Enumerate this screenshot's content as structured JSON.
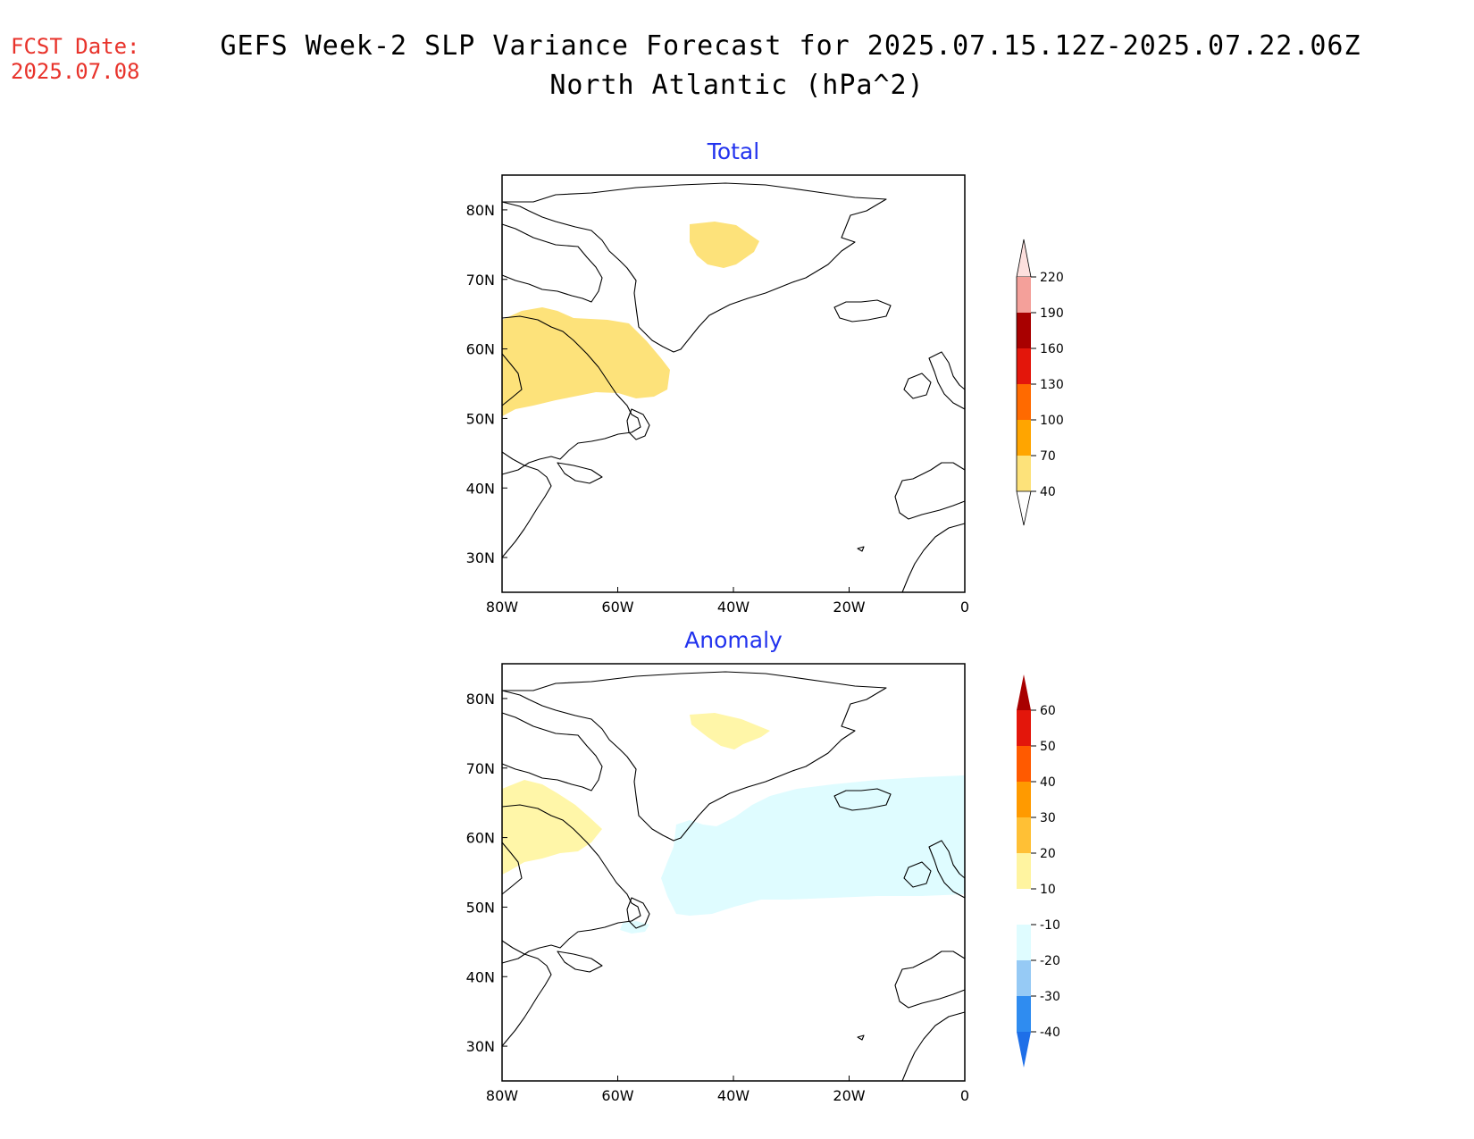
{
  "header": {
    "fcst_label": "FCST Date:",
    "fcst_date": "2025.07.08",
    "title_line1": "GEFS Week-2 SLP Variance Forecast for 2025.07.15.12Z-2025.07.22.06Z",
    "title_line2": "North Atlantic (hPa^2)"
  },
  "map": {
    "lon_range": [
      -80,
      0
    ],
    "lat_range": [
      25,
      85
    ],
    "lon_ticks": [
      "80W",
      "60W",
      "40W",
      "20W",
      "0"
    ],
    "lat_ticks": [
      "80N",
      "70N",
      "60N",
      "50N",
      "40N",
      "30N"
    ]
  },
  "panels": [
    {
      "title": "Total",
      "colorbar": {
        "levels": [
          "40",
          "70",
          "100",
          "130",
          "160",
          "190",
          "220"
        ],
        "colors": [
          "#fde27a",
          "#ffa500",
          "#ff6a00",
          "#e3160b",
          "#a80000",
          "#f4a09a",
          "#fde0de"
        ],
        "below_color": "#ffffff"
      },
      "shaded_regions": [
        {
          "name": "greenland-interior",
          "level": "40-70",
          "color": "#fde27a"
        },
        {
          "name": "labrador-quebec",
          "level": "40-70",
          "color": "#fde27a"
        }
      ]
    },
    {
      "title": "Anomaly",
      "colorbar": {
        "levels": [
          "-40",
          "-30",
          "-20",
          "-10",
          "10",
          "20",
          "30",
          "40",
          "50",
          "60"
        ],
        "colors": [
          "#1e6fe8",
          "#2f8cf0",
          "#96caf5",
          "#dffcff",
          "#ffffff",
          "#fff4a0",
          "#ffc035",
          "#ff9a00",
          "#ff5a00",
          "#e3160b",
          "#a80000"
        ]
      },
      "shaded_regions": [
        {
          "name": "greenland-interior",
          "level": "10-20",
          "color": "#fff6a8"
        },
        {
          "name": "labrador-quebec",
          "level": "10-20",
          "color": "#fff6a8"
        },
        {
          "name": "north-atlantic-iceland",
          "level": "-10 to -20",
          "color": "#dffcff"
        }
      ]
    }
  ]
}
